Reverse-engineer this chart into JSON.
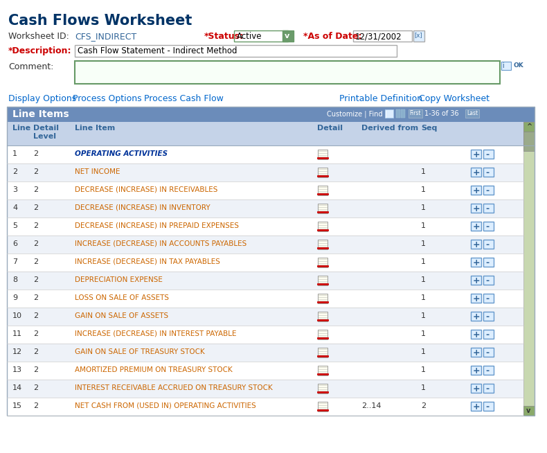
{
  "title": "Cash Flows Worksheet",
  "title_color": "#003366",
  "bg_color": "#ffffff",
  "worksheet_id_label": "Worksheet ID:",
  "worksheet_id_value": "CFS_INDIRECT",
  "status_label": "*Status:",
  "status_value": "Active",
  "asofdate_label": "*As of Date:",
  "asofdate_value": "12/31/2002",
  "description_label": "*Description:",
  "description_value": "Cash Flow Statement - Indirect Method",
  "comment_label": "Comment:",
  "nav_links_left": [
    "Display Options",
    "Process Options",
    "Process Cash Flow"
  ],
  "nav_links_right": [
    "Printable Definition",
    "Copy Worksheet"
  ],
  "table_header_bg": "#6b8cba",
  "table_header_text": "#ffffff",
  "table_title": "Line Items",
  "col_header_bg": "#c5d3e8",
  "col_header_text": "#336699",
  "row_alt1": "#ffffff",
  "row_alt2": "#eef2f8",
  "row_text_color": "#cc6600",
  "row_text_bold1": "#003399",
  "rows": [
    {
      "line": "1",
      "level": "2",
      "item": "OPERATING ACTIVITIES",
      "derived": "",
      "seq": "",
      "bold": true,
      "italic": true
    },
    {
      "line": "2",
      "level": "2",
      "item": "NET INCOME",
      "derived": "",
      "seq": "1",
      "bold": false,
      "italic": false
    },
    {
      "line": "3",
      "level": "2",
      "item": "DECREASE (INCREASE) IN RECEIVABLES",
      "derived": "",
      "seq": "1",
      "bold": false,
      "italic": false
    },
    {
      "line": "4",
      "level": "2",
      "item": "DECREASE (INCREASE) IN INVENTORY",
      "derived": "",
      "seq": "1",
      "bold": false,
      "italic": false
    },
    {
      "line": "5",
      "level": "2",
      "item": "DECREASE (INCREASE) IN PREPAID EXPENSES",
      "derived": "",
      "seq": "1",
      "bold": false,
      "italic": false
    },
    {
      "line": "6",
      "level": "2",
      "item": "INCREASE (DECREASE) IN ACCOUNTS PAYABLES",
      "derived": "",
      "seq": "1",
      "bold": false,
      "italic": false
    },
    {
      "line": "7",
      "level": "2",
      "item": "INCREASE (DECREASE) IN TAX PAYABLES",
      "derived": "",
      "seq": "1",
      "bold": false,
      "italic": false
    },
    {
      "line": "8",
      "level": "2",
      "item": "DEPRECIATION EXPENSE",
      "derived": "",
      "seq": "1",
      "bold": false,
      "italic": false
    },
    {
      "line": "9",
      "level": "2",
      "item": "LOSS ON SALE OF ASSETS",
      "derived": "",
      "seq": "1",
      "bold": false,
      "italic": false
    },
    {
      "line": "10",
      "level": "2",
      "item": "GAIN ON SALE OF ASSETS",
      "derived": "",
      "seq": "1",
      "bold": false,
      "italic": false
    },
    {
      "line": "11",
      "level": "2",
      "item": "INCREASE (DECREASE) IN INTEREST PAYABLE",
      "derived": "",
      "seq": "1",
      "bold": false,
      "italic": false
    },
    {
      "line": "12",
      "level": "2",
      "item": "GAIN ON SALE OF TREASURY STOCK",
      "derived": "",
      "seq": "1",
      "bold": false,
      "italic": false
    },
    {
      "line": "13",
      "level": "2",
      "item": "AMORTIZED PREMIUM ON TREASURY STOCK",
      "derived": "",
      "seq": "1",
      "bold": false,
      "italic": false
    },
    {
      "line": "14",
      "level": "2",
      "item": "INTEREST RECEIVABLE ACCRUED ON TREASURY STOCK",
      "derived": "",
      "seq": "1",
      "bold": false,
      "italic": false
    },
    {
      "line": "15",
      "level": "2",
      "item": "NET CASH FROM (USED IN) OPERATING ACTIVITIES",
      "derived": "2..14",
      "seq": "2",
      "bold": false,
      "italic": false
    }
  ]
}
